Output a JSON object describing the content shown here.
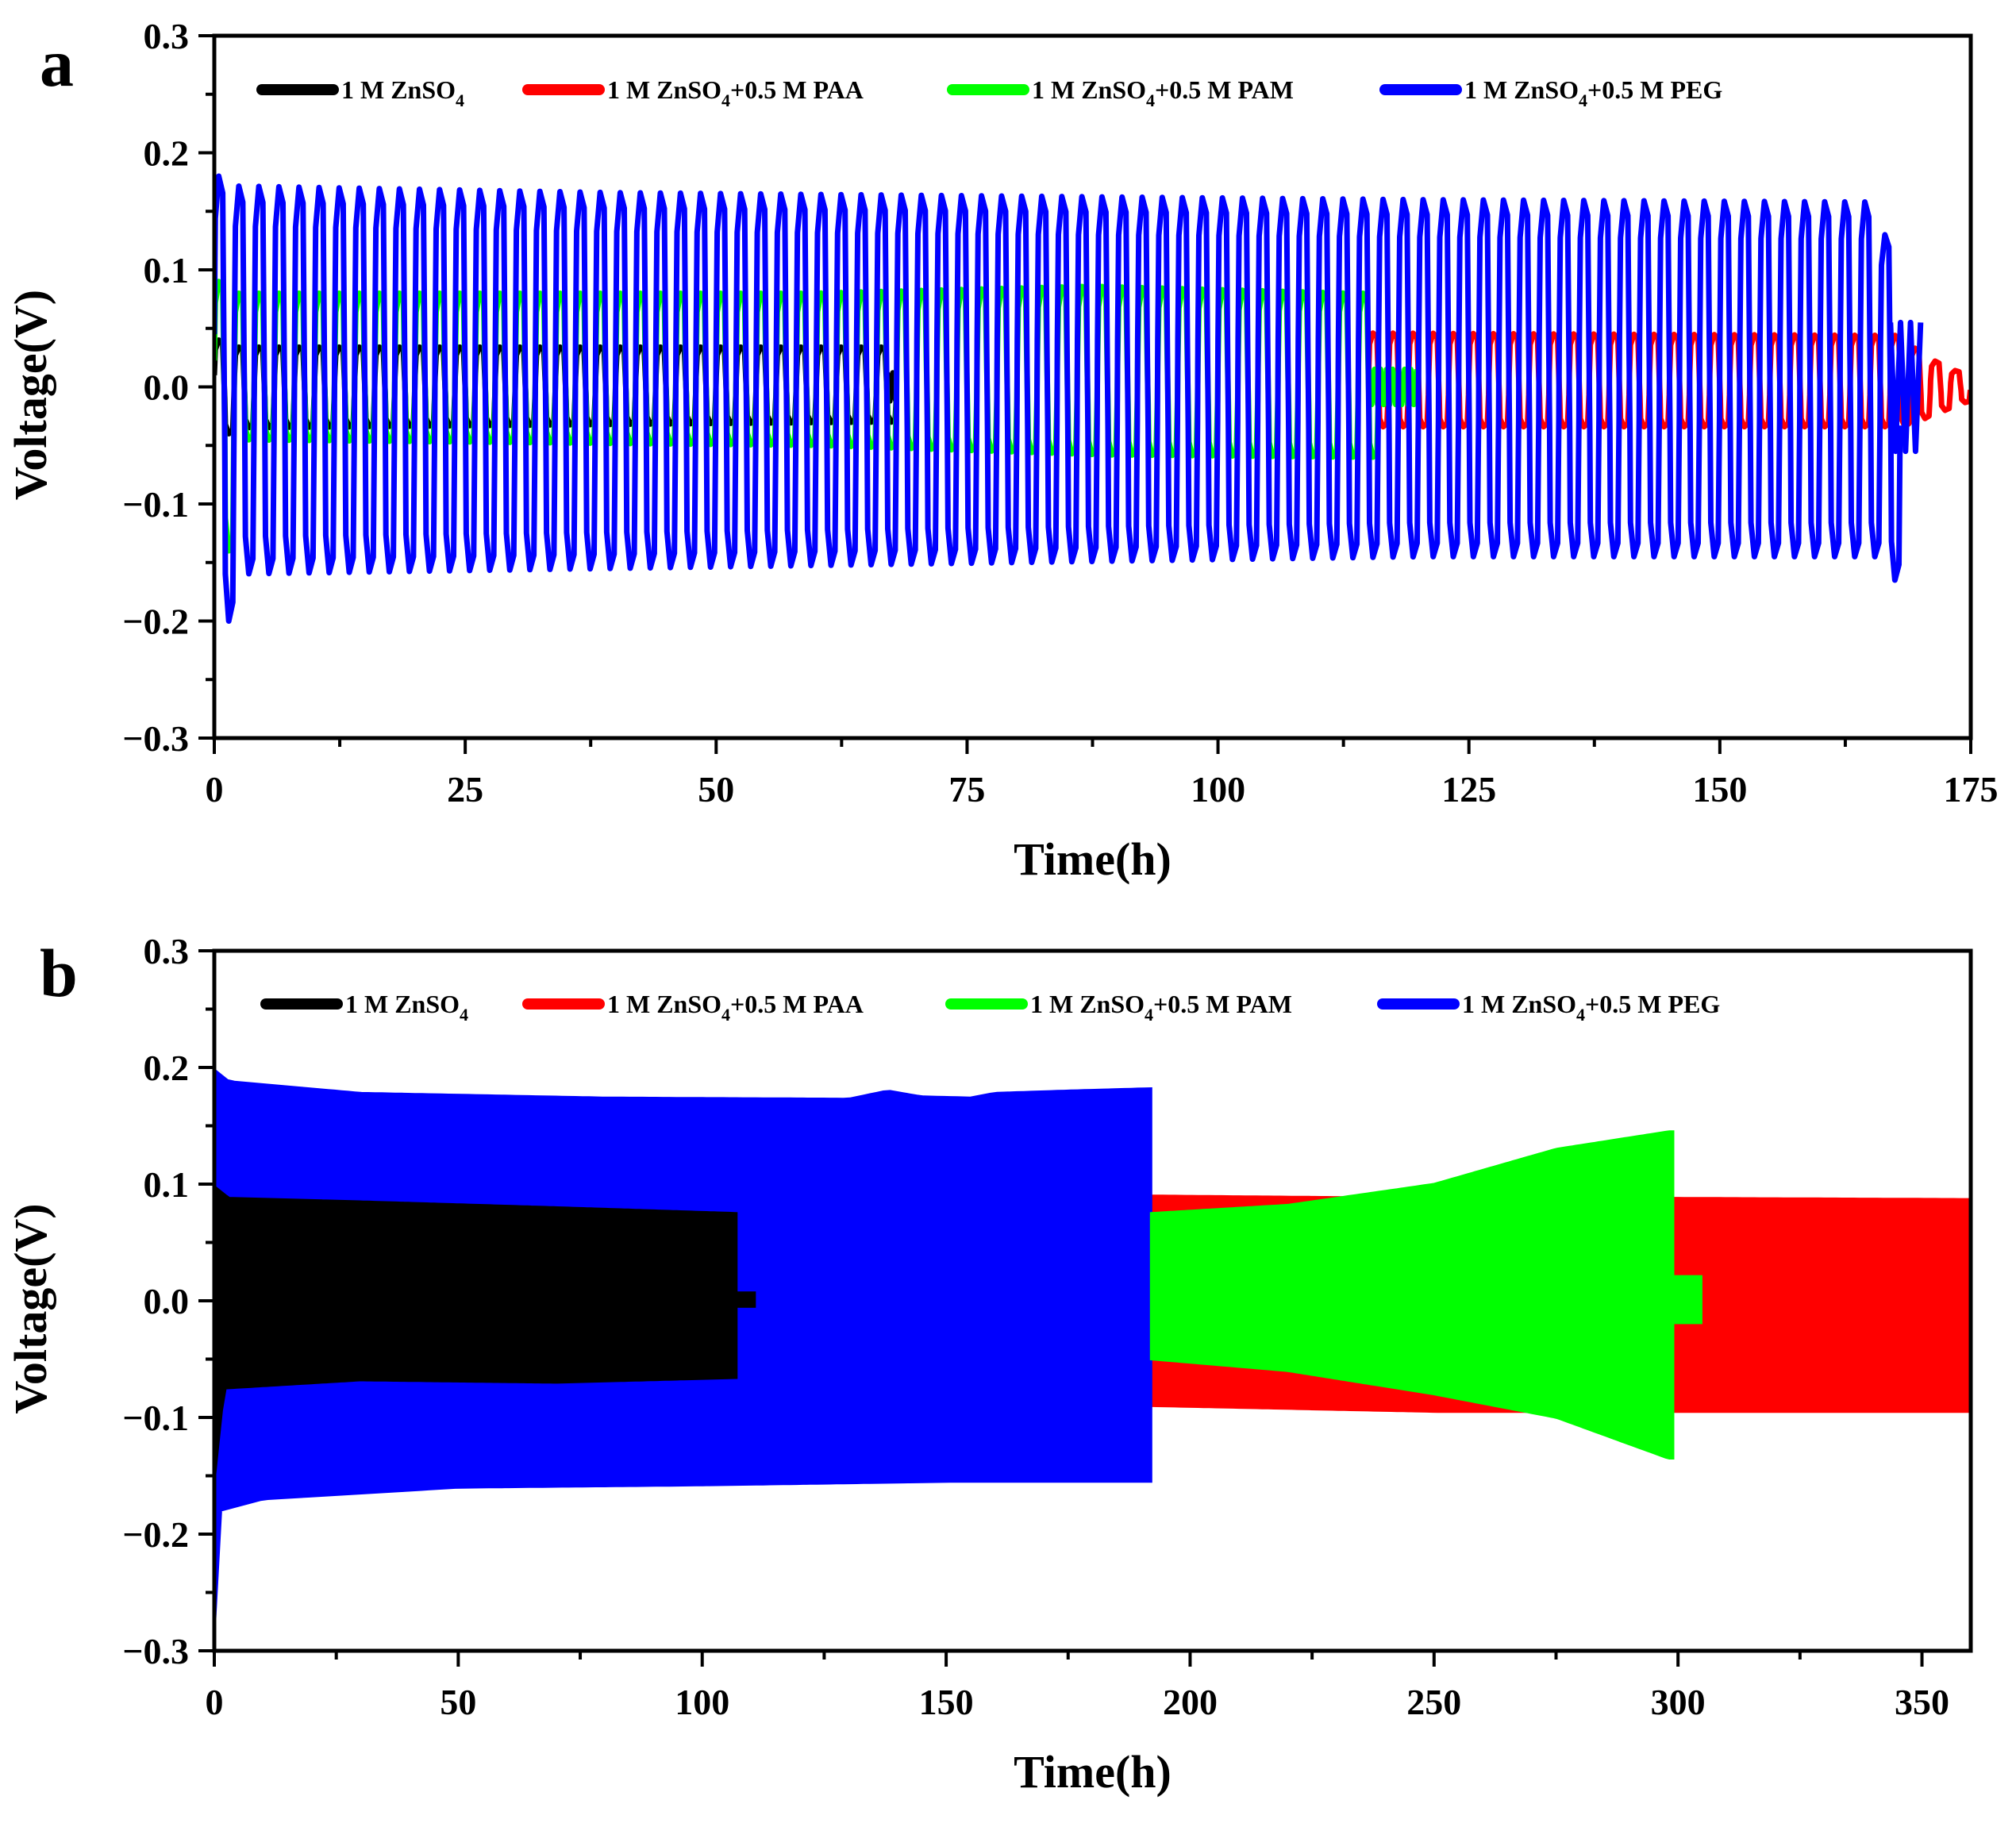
{
  "chart_data": [
    {
      "panel": "a",
      "type": "line",
      "title": "",
      "xlabel": "Time(h)",
      "ylabel": "Voltage(V)",
      "xlim": [
        0,
        175
      ],
      "ylim": [
        -0.3,
        0.3
      ],
      "xticks": [
        0,
        25,
        50,
        75,
        100,
        125,
        150,
        175
      ],
      "yticks": [
        -0.3,
        -0.2,
        -0.1,
        0.0,
        0.1,
        0.2,
        0.3
      ],
      "xtick_labels": [
        "0",
        "25",
        "50",
        "75",
        "100",
        "125",
        "150",
        "175"
      ],
      "ytick_labels": [
        "−0.3",
        "−0.2",
        "−0.1",
        "0.0",
        "0.1",
        "0.2",
        "0.3"
      ],
      "legend_position": "top",
      "grid": false,
      "series": [
        {
          "name": "1 M ZnSO4",
          "label": {
            "main": "1 M ZnSO",
            "sub": "4",
            "tail": ""
          },
          "color": "#000000",
          "style": "cycles",
          "period_h": 2,
          "end_h": 67,
          "initial": {
            "up": 0.04,
            "down": -0.04
          },
          "envelope": [
            {
              "t": 0,
              "up": 0.034,
              "down": -0.035
            },
            {
              "t": 66,
              "up": 0.034,
              "down": -0.03
            }
          ],
          "tail_h": 1,
          "tail_amp": 0.012
        },
        {
          "name": "1 M ZnSO4+0.5 M PAA",
          "label": {
            "main": "1 M ZnSO",
            "sub": "4",
            "tail": "+0.5 M PAA"
          },
          "color": "#ff0000",
          "style": "cycles",
          "period_h": 2,
          "start_h": 115,
          "end_h": 175,
          "envelope": [
            {
              "t": 115,
              "up": 0.046,
              "down": -0.034
            },
            {
              "t": 168,
              "up": 0.044,
              "down": -0.034
            },
            {
              "t": 172,
              "up": 0.022,
              "down": -0.02
            },
            {
              "t": 175,
              "up": 0.01,
              "down": -0.01
            }
          ]
        },
        {
          "name": "1 M ZnSO4+0.5 M PAM",
          "label": {
            "main": "1 M ZnSO",
            "sub": "4",
            "tail": "+0.5 M PAM"
          },
          "color": "#00ff00",
          "style": "cycles",
          "period_h": 2,
          "end_h": 115,
          "initial": {
            "up": 0.09,
            "down": -0.14
          },
          "envelope": [
            {
              "t": 0,
              "up": 0.08,
              "down": -0.045
            },
            {
              "t": 60,
              "up": 0.08,
              "down": -0.05
            },
            {
              "t": 88,
              "up": 0.086,
              "down": -0.058
            },
            {
              "t": 114,
              "up": 0.08,
              "down": -0.06
            }
          ],
          "tail_h": 5,
          "tail_amp": 0.015
        },
        {
          "name": "1 M ZnSO4+0.5 M PEG",
          "label": {
            "main": "1 M ZnSO",
            "sub": "4",
            "tail": "+0.5 M PEG"
          },
          "color": "#0000ff",
          "style": "cycles",
          "period_h": 2,
          "end_h": 167,
          "initial": {
            "up": 0.18,
            "down": -0.2
          },
          "envelope": [
            {
              "t": 0,
              "up": 0.172,
              "down": -0.16
            },
            {
              "t": 40,
              "up": 0.166,
              "down": -0.155
            },
            {
              "t": 120,
              "up": 0.16,
              "down": -0.145
            },
            {
              "t": 164,
              "up": 0.158,
              "down": -0.145
            }
          ],
          "final": {
            "t": 166.5,
            "up": 0.13,
            "down": -0.165
          },
          "extra": {
            "start_h": 167,
            "end_h": 170,
            "up": 0.055,
            "down": -0.055
          }
        }
      ]
    },
    {
      "panel": "b",
      "type": "line",
      "title": "",
      "xlabel": "Time(h)",
      "ylabel": "Voltage(V)",
      "xlim": [
        0,
        360
      ],
      "ylim": [
        -0.3,
        0.3
      ],
      "xticks": [
        0,
        50,
        100,
        150,
        200,
        250,
        300,
        350
      ],
      "yticks": [
        -0.3,
        -0.2,
        -0.1,
        0.0,
        0.1,
        0.2,
        0.3
      ],
      "xtick_labels": [
        "0",
        "50",
        "100",
        "150",
        "200",
        "250",
        "300",
        "350"
      ],
      "ytick_labels": [
        "−0.3",
        "−0.2",
        "−0.1",
        "0.0",
        "0.1",
        "0.2",
        "0.3"
      ],
      "legend_position": "top",
      "grid": false,
      "series": [
        {
          "name": "1 M ZnSO4+0.5 M PAA",
          "label": {
            "main": "1 M ZnSO",
            "sub": "4",
            "tail": "+0.5 M PAA"
          },
          "color": "#ff0000",
          "style": "band",
          "start_h": 192,
          "end_h": 360,
          "upper": [
            [
              192,
              0.09
            ],
            [
              250,
              0.088
            ],
            [
              300,
              0.088
            ],
            [
              360,
              0.087
            ]
          ],
          "lower": [
            [
              192,
              -0.09
            ],
            [
              250,
              -0.095
            ],
            [
              300,
              -0.095
            ],
            [
              360,
              -0.095
            ]
          ]
        },
        {
          "name": "1 M ZnSO4+0.5 M PEG",
          "label": {
            "main": "1 M ZnSO",
            "sub": "4",
            "tail": "+0.5 M PEG"
          },
          "color": "#0000ff",
          "style": "band",
          "start_h": 0,
          "end_h": 192,
          "upper": [
            [
              0,
              0.198
            ],
            [
              3,
              0.188
            ],
            [
              30,
              0.178
            ],
            [
              80,
              0.174
            ],
            [
              130,
              0.173
            ],
            [
              138,
              0.18
            ],
            [
              145,
              0.175
            ],
            [
              155,
              0.174
            ],
            [
              160,
              0.178
            ],
            [
              175,
              0.18
            ],
            [
              192,
              0.182
            ]
          ],
          "lower": [
            [
              0,
              -0.285
            ],
            [
              1,
              -0.18
            ],
            [
              10,
              -0.17
            ],
            [
              50,
              -0.16
            ],
            [
              100,
              -0.158
            ],
            [
              150,
              -0.155
            ],
            [
              192,
              -0.155
            ]
          ],
          "tail": {
            "start_h": 192,
            "end_h": 196,
            "up": 0.03,
            "down": -0.01
          }
        },
        {
          "name": "1 M ZnSO4+0.5 M PAM",
          "label": {
            "main": "1 M ZnSO",
            "sub": "4",
            "tail": "+0.5 M PAM"
          },
          "color": "#00ff00",
          "style": "band",
          "start_h": 192,
          "end_h": 299,
          "upper": [
            [
              192,
              0.075
            ],
            [
              220,
              0.082
            ],
            [
              250,
              0.1
            ],
            [
              275,
              0.13
            ],
            [
              298,
              0.145
            ]
          ],
          "lower": [
            [
              192,
              -0.05
            ],
            [
              220,
              -0.06
            ],
            [
              250,
              -0.08
            ],
            [
              275,
              -0.1
            ],
            [
              298,
              -0.135
            ]
          ],
          "tail": {
            "start_h": 299,
            "end_h": 305,
            "up": 0.022,
            "down": -0.02
          }
        },
        {
          "name": "1 M ZnSO4",
          "label": {
            "main": "1 M ZnSO",
            "sub": "4",
            "tail": ""
          },
          "color": "#000000",
          "style": "band",
          "start_h": 0,
          "end_h": 107,
          "upper": [
            [
              0,
              0.098
            ],
            [
              3,
              0.088
            ],
            [
              30,
              0.085
            ],
            [
              70,
              0.08
            ],
            [
              107,
              0.075
            ]
          ],
          "lower": [
            [
              0,
              -0.155
            ],
            [
              2,
              -0.075
            ],
            [
              30,
              -0.068
            ],
            [
              70,
              -0.07
            ],
            [
              107,
              -0.066
            ]
          ],
          "tail": {
            "start_h": 107,
            "end_h": 111,
            "up": 0.008,
            "down": -0.006
          }
        }
      ]
    }
  ]
}
